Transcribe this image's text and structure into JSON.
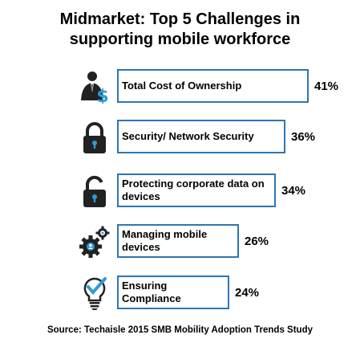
{
  "chart_data": {
    "type": "bar",
    "orientation": "horizontal",
    "title": [
      "Midmarket: Top 5 Challenges in",
      "supporting mobile workforce"
    ],
    "categories": [
      [
        "Total Cost of Ownership"
      ],
      [
        "Security/ Network Security"
      ],
      [
        "Protecting corporate data on",
        "devices"
      ],
      [
        "Managing mobile",
        "devices"
      ],
      [
        "Ensuring",
        "Compliance"
      ]
    ],
    "values": [
      41,
      36,
      34,
      26,
      24
    ],
    "value_labels": [
      "41%",
      "36%",
      "34%",
      "26%",
      "24%"
    ],
    "icons": [
      "businessman-dollar-icon",
      "lock-closed-icon",
      "lock-open-icon",
      "gear-people-icon",
      "lightbulb-check-icon"
    ],
    "bar_border_color": "#2e75b6",
    "xlim": [
      0,
      41
    ]
  },
  "source": "Source: Techaisle 2015 SMB Mobility Adoption Trends Study"
}
